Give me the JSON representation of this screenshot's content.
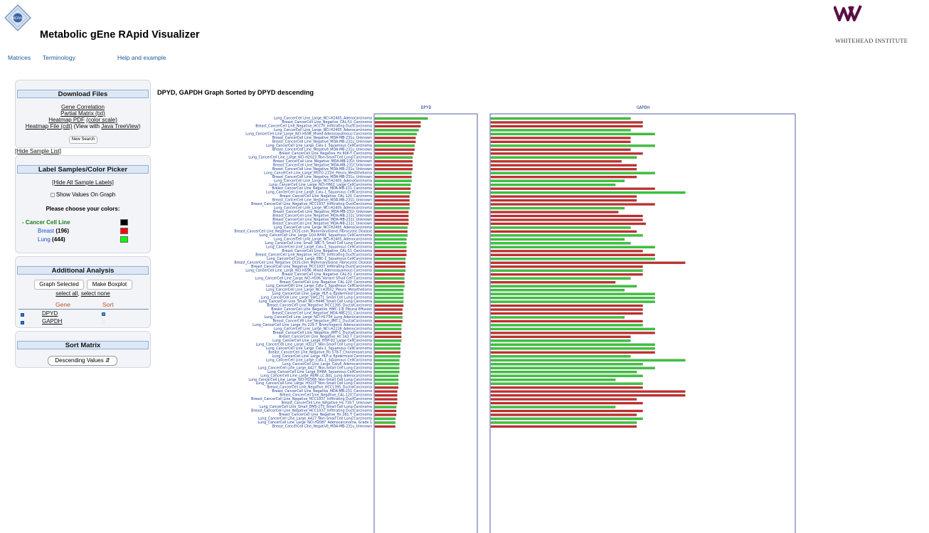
{
  "header": {
    "title": "Metabolic gEne RApid Visualizer",
    "logo_text": "MERAV",
    "institute": "WHITEHEAD INSTITUTE"
  },
  "nav": [
    "Matrices",
    "Terminology",
    "Help and example"
  ],
  "download": {
    "title": "Download Files",
    "links": [
      "Gene Correlation",
      "Partial Matrix (txt)",
      "Heatmap PDF",
      "(color scale)"
    ],
    "heatmap_file": "Heatmap File (cdt)",
    "view_with": "(View with",
    "treeview": "Java TreeView",
    "close_paren": ")",
    "new_search": "New Search"
  },
  "hide_sample_list": "[Hide Sample List]",
  "label_panel": {
    "title": "Label Samples/Color Picker",
    "hide_all": "[Hide All Sample Labels]",
    "show_values": "Show Values On Graph",
    "choose": "Please choose your colors:",
    "groups": [
      {
        "dash": "-",
        "name": "Cancer Cell Line",
        "color": "#000000",
        "name_color": "#1e7a1e"
      },
      {
        "name": "Breast",
        "count": "(196)",
        "color": "#ff0000",
        "name_color": "#1a4fd0"
      },
      {
        "name": "Lung",
        "count": "(444)",
        "color": "#00ff00",
        "name_color": "#1a4fd0"
      }
    ]
  },
  "analysis": {
    "title": "Additional Analysis",
    "graph_selected": "Graph Selected",
    "make_boxplot": "Make Boxplot",
    "select_all": "select all",
    "comma": ",",
    "select_none": "select none",
    "col_gene": "Gene",
    "col_sort": "Sort",
    "genes": [
      "DPYD",
      "GAPDH"
    ]
  },
  "sort_matrix": {
    "title": "Sort Matrix",
    "selected": "Descending Values"
  },
  "graph": {
    "title": "DPYD, GAPDH Graph Sorted by DPYD descending",
    "panel_titles": [
      "DPYD",
      "GAPDH"
    ]
  },
  "chart_data": {
    "type": "bar",
    "orientation": "horizontal",
    "colors": {
      "Breast": "#cc2a2a",
      "Lung": "#33cc33"
    },
    "categories": [
      "Lung_CancerCell Line_Large_NCI-H2405_Adenocarcinoma",
      "Breast_CancerCell Line_Negative_CAL-51_Carcinoma",
      "Breast_CancerCell Line_Negative_HCC70_Infiltrating DuctCarcinoma",
      "Lung_CancerCell Line_Large_NCI-H2405_Adenocarcinoma",
      "Lung_CancerCell Line_Large_NCI-H596_Mixed Adenosquamous Carcinoma",
      "Breast_CancerCell Line_Negative_MDA-MB-231u_Unknown",
      "Breast_CancerCell Line_Negative_MDA-MB-231u_Unknown",
      "Lung_CancerCell Line_Large_Calu-1_Squamous CellCarcinoma",
      "Breast_CancerCell Line_Negative_MDA-MB-231u_Unknown",
      "Breast_CancerCell Line_Negative_Hs 606-T_Carcinoma",
      "Lung_CancerCell Line_Large_NCI-H2023_Non-Small Cell Lung Carcinoma",
      "Breast_CancerCell Line_Negative_MDA-MB-231t_Unknown",
      "Breast_CancerCell Line_Negative_MDA-MB-231t_Unknown",
      "Breast_CancerCell Line_Negative_MDA-MB-231u_Unknown",
      "Lung_CancerCell Line_Large_MSTO-211H_Pleura_Mesothelioma",
      "Breast_CancerCell Line_Negative_MDA-MB-231u_Unknown",
      "Lung_CancerCell Line_Large_NCI-H2405_Adenocarcinoma",
      "Lung_CancerCell Line_Large_NCI-H661_Large CellCarcinoma",
      "Breast_CancerCell Line_Negative_MDA-MB-231_Carcinoma",
      "Lung_CancerCell Line_Large_Calu-1_Squamous CellCarcinoma",
      "Breast_CancerCell Line_Negative_CAL-120_Carcinoma",
      "Breast_CancerCell Line_Negative_MDA-MB-231u_Unknown",
      "Breast_CancerCell Line_Negative_HCC1937_Infiltrating DuctCarcinoma",
      "Lung_CancerCell Line_Large_NCI-H2405_Adenocarcinoma",
      "Breast_CancerCell Line_Negative_MDA-MB-231t_Unknown",
      "Breast_CancerCell Line_Negative_MDA-MB-231c_Unknown",
      "Breast_CancerCell Line_Negative_MDA-MB-231c_Unknown",
      "Breast_CancerCell Line_Negative_MDA-MB-231c_Unknown",
      "Lung_CancerCell Line_Large_NCI-H2405_Adenocarcinoma",
      "Breast_CancerCell Line_Negative_DCIS.com_MammaryGland_Fibrocystic Disease",
      "Lung_CancerCell Line_Large_LOU-NH91_Squamous CellCarcinoma",
      "Lung_CancerCell Line_Large_NCI-H2405_Adenocarcinoma",
      "Lung_CancerCell Line_Small_SBC-5_Small Cell Lung Carcinoma",
      "Lung_CancerCell Line_Large_Calu-1_Squamous CellCarcinoma",
      "Breast_CancerCell Line_Negative_CAL-51_Carcinoma",
      "Breast_CancerCell Line_Negative_HCC70_Infiltrating DuctCarcinoma",
      "Lung_CancerCell Line_Large_EBC-1_Squamous CellCarcinoma",
      "Breast_CancerCell Line_Negative_DCIS.com_MammaryGland_Fibrocystic Disease",
      "Breast_CancerCell Line_Negative_HCC1937_Infiltrating DuctCarcinoma",
      "Lung_CancerCell Line_Large_NCI-H596_Mixed Adenosquamous Carcinoma",
      "Breast_CancerCell Line_Negative_CAL-51_Carcinoma",
      "Lung_CancerCell Line_Large_NCI-H596_Variant Small Cell Carcinoma",
      "Breast_CancerCell Line_Negative_CAL-120_Carcinoma",
      "Lung_CancerCell Line_Large_Calu-1_Squamous CellCarcinoma",
      "Lung_CancerCell Line_Large_NCI-H2052_Pleura_Mesothelioma",
      "Lung_CancerCell Line_Large_HLF-a_Epidermoid Carcinoma",
      "Lung_CancerCell Line_Large_SW1271_Small Cell Lung Carcinoma",
      "Lung_CancerCell Line_Small_NCI-H446_Small Cell Lung Carcinoma",
      "Breast_CancerCell Line_Negative_HCC1395_DuctalCarcinoma",
      "Breast_CancerCell Line_Negative_HMC-1-8_Pleural Effusion",
      "Breast_CancerCell Line_Negative_MDA-MB-231_Carcinoma",
      "Lung_CancerCell Line_Large_NCI-H1734_Lung Adenocarcinoma",
      "Breast_CancerCell Line_Negative_JIMT-1_DuctalCarcinoma",
      "Lung_CancerCell Line_Large_Hs 229.T_Bronchogenic Adenocarcinoma",
      "Lung_CancerCell Line_Large_NCI-H2228_Adenocarcinoma",
      "Breast_CancerCell Line_Negative_JIMT-1_DuctalCarcinoma",
      "Breast_CancerCell Line_Negative_Hs 343.T_Carcinoma",
      "Lung_CancerCell Line_Large_HOP-92_Large CellCarcinoma",
      "Lung_CancerCell Line_Large_H322T_Non-Small Cell Lung Carcinoma",
      "Lung_CancerCell Line_Large_Calu-1_Squamous CellCarcinoma",
      "Breast_CancerCell Line_Negative_Hs 578-T_Chondrosarcoma",
      "Lung_CancerCell Line_Large_HLF-a_Epidermoid Carcinoma",
      "Lung_CancerCell Line_Large_Calu-1_Squamous CellCarcinoma",
      "Lung_CancerCell Line_Large_Calu6_Adenocarcinoma",
      "Lung_CancerCell Line_Large_A427_Non-Small Cell Lung Carcinoma",
      "Lung_CancerCell Line_Large_HARA_Squamous CellCarcinoma",
      "Lung_CancerCell Line_Large_RERF-LC-Ad1_Lung Adenocarcinoma",
      "Lung_CancerCell Line_Large_NCI-H1568_Non-Small Cell Lung Carcinoma",
      "Lung_CancerCell Line_Large_H322T_Non-Small Cell Lung Carcinoma",
      "Breast_CancerCell Line_Negative_HCC1395_DuctalCarcinoma",
      "Breast_CancerCell Line_Negative_MDA-MB-231_Carcinoma",
      "Breast_CancerCell Line_Negative_CAL-120_Carcinoma",
      "Breast_CancerCell Line_Negative_HCC1937_Infiltrating DuctCarcinoma",
      "Breast_CancerCell Line_Negative_Hs 739.T_Unknown",
      "Lung_CancerCell Line_Small_DMS-273_Small Cell Lung Carcinoma",
      "Breast_CancerCell Line_Negative_HCC1937_Infiltrating DuctCarcinoma",
      "Breast_CancerCell Line_Negative_Hs 281.T_Carcinoma",
      "Lung_CancerCell Line_Large_A427_Non-Small Cell Lung Carcinoma",
      "Lung_CancerCell Line_Large_NCI-H2087_Adenocarcinoma, Grade 1",
      "Breast_CancerCell Line_Negative_MDA-MB-231u_Unknown"
    ],
    "groups": [
      "L",
      "B",
      "B",
      "L",
      "L",
      "B",
      "B",
      "L",
      "B",
      "B",
      "L",
      "B",
      "B",
      "B",
      "L",
      "B",
      "L",
      "L",
      "B",
      "L",
      "B",
      "B",
      "B",
      "L",
      "B",
      "B",
      "B",
      "B",
      "L",
      "B",
      "L",
      "L",
      "L",
      "L",
      "B",
      "B",
      "L",
      "B",
      "B",
      "L",
      "B",
      "L",
      "B",
      "L",
      "L",
      "L",
      "L",
      "L",
      "B",
      "B",
      "B",
      "L",
      "B",
      "L",
      "L",
      "B",
      "B",
      "L",
      "L",
      "L",
      "B",
      "L",
      "L",
      "L",
      "L",
      "L",
      "L",
      "L",
      "L",
      "B",
      "B",
      "B",
      "B",
      "B",
      "L",
      "B",
      "B",
      "L",
      "L",
      "B"
    ],
    "series": [
      {
        "name": "DPYD",
        "xlim": [
          0,
          100
        ],
        "values": [
          52,
          45,
          45,
          43,
          41,
          40,
          40,
          39,
          39,
          38,
          37,
          37,
          37,
          37,
          36,
          36,
          36,
          35,
          35,
          35,
          34,
          34,
          34,
          34,
          33,
          33,
          33,
          33,
          32,
          32,
          32,
          31,
          31,
          31,
          31,
          31,
          30,
          30,
          30,
          30,
          29,
          29,
          29,
          29,
          28,
          28,
          28,
          28,
          28,
          27,
          27,
          27,
          27,
          26,
          26,
          26,
          26,
          26,
          25,
          25,
          25,
          25,
          24,
          24,
          24,
          24,
          23,
          23,
          23,
          23,
          22,
          22,
          22,
          22,
          21,
          21,
          21,
          20,
          20,
          20
        ]
      },
      {
        "name": "GAPDH",
        "xlim": [
          0,
          100
        ],
        "values": [
          46,
          50,
          50,
          46,
          54,
          46,
          46,
          54,
          46,
          50,
          48,
          43,
          48,
          48,
          54,
          48,
          44,
          41,
          54,
          64,
          48,
          48,
          54,
          44,
          42,
          50,
          50,
          51,
          46,
          48,
          50,
          44,
          46,
          54,
          50,
          54,
          54,
          64,
          50,
          50,
          50,
          46,
          41,
          48,
          44,
          54,
          54,
          54,
          50,
          50,
          50,
          44,
          50,
          50,
          54,
          54,
          46,
          46,
          54,
          54,
          54,
          46,
          64,
          50,
          54,
          48,
          50,
          41,
          50,
          50,
          64,
          64,
          48,
          50,
          41,
          50,
          48,
          50,
          48,
          48
        ]
      }
    ]
  }
}
